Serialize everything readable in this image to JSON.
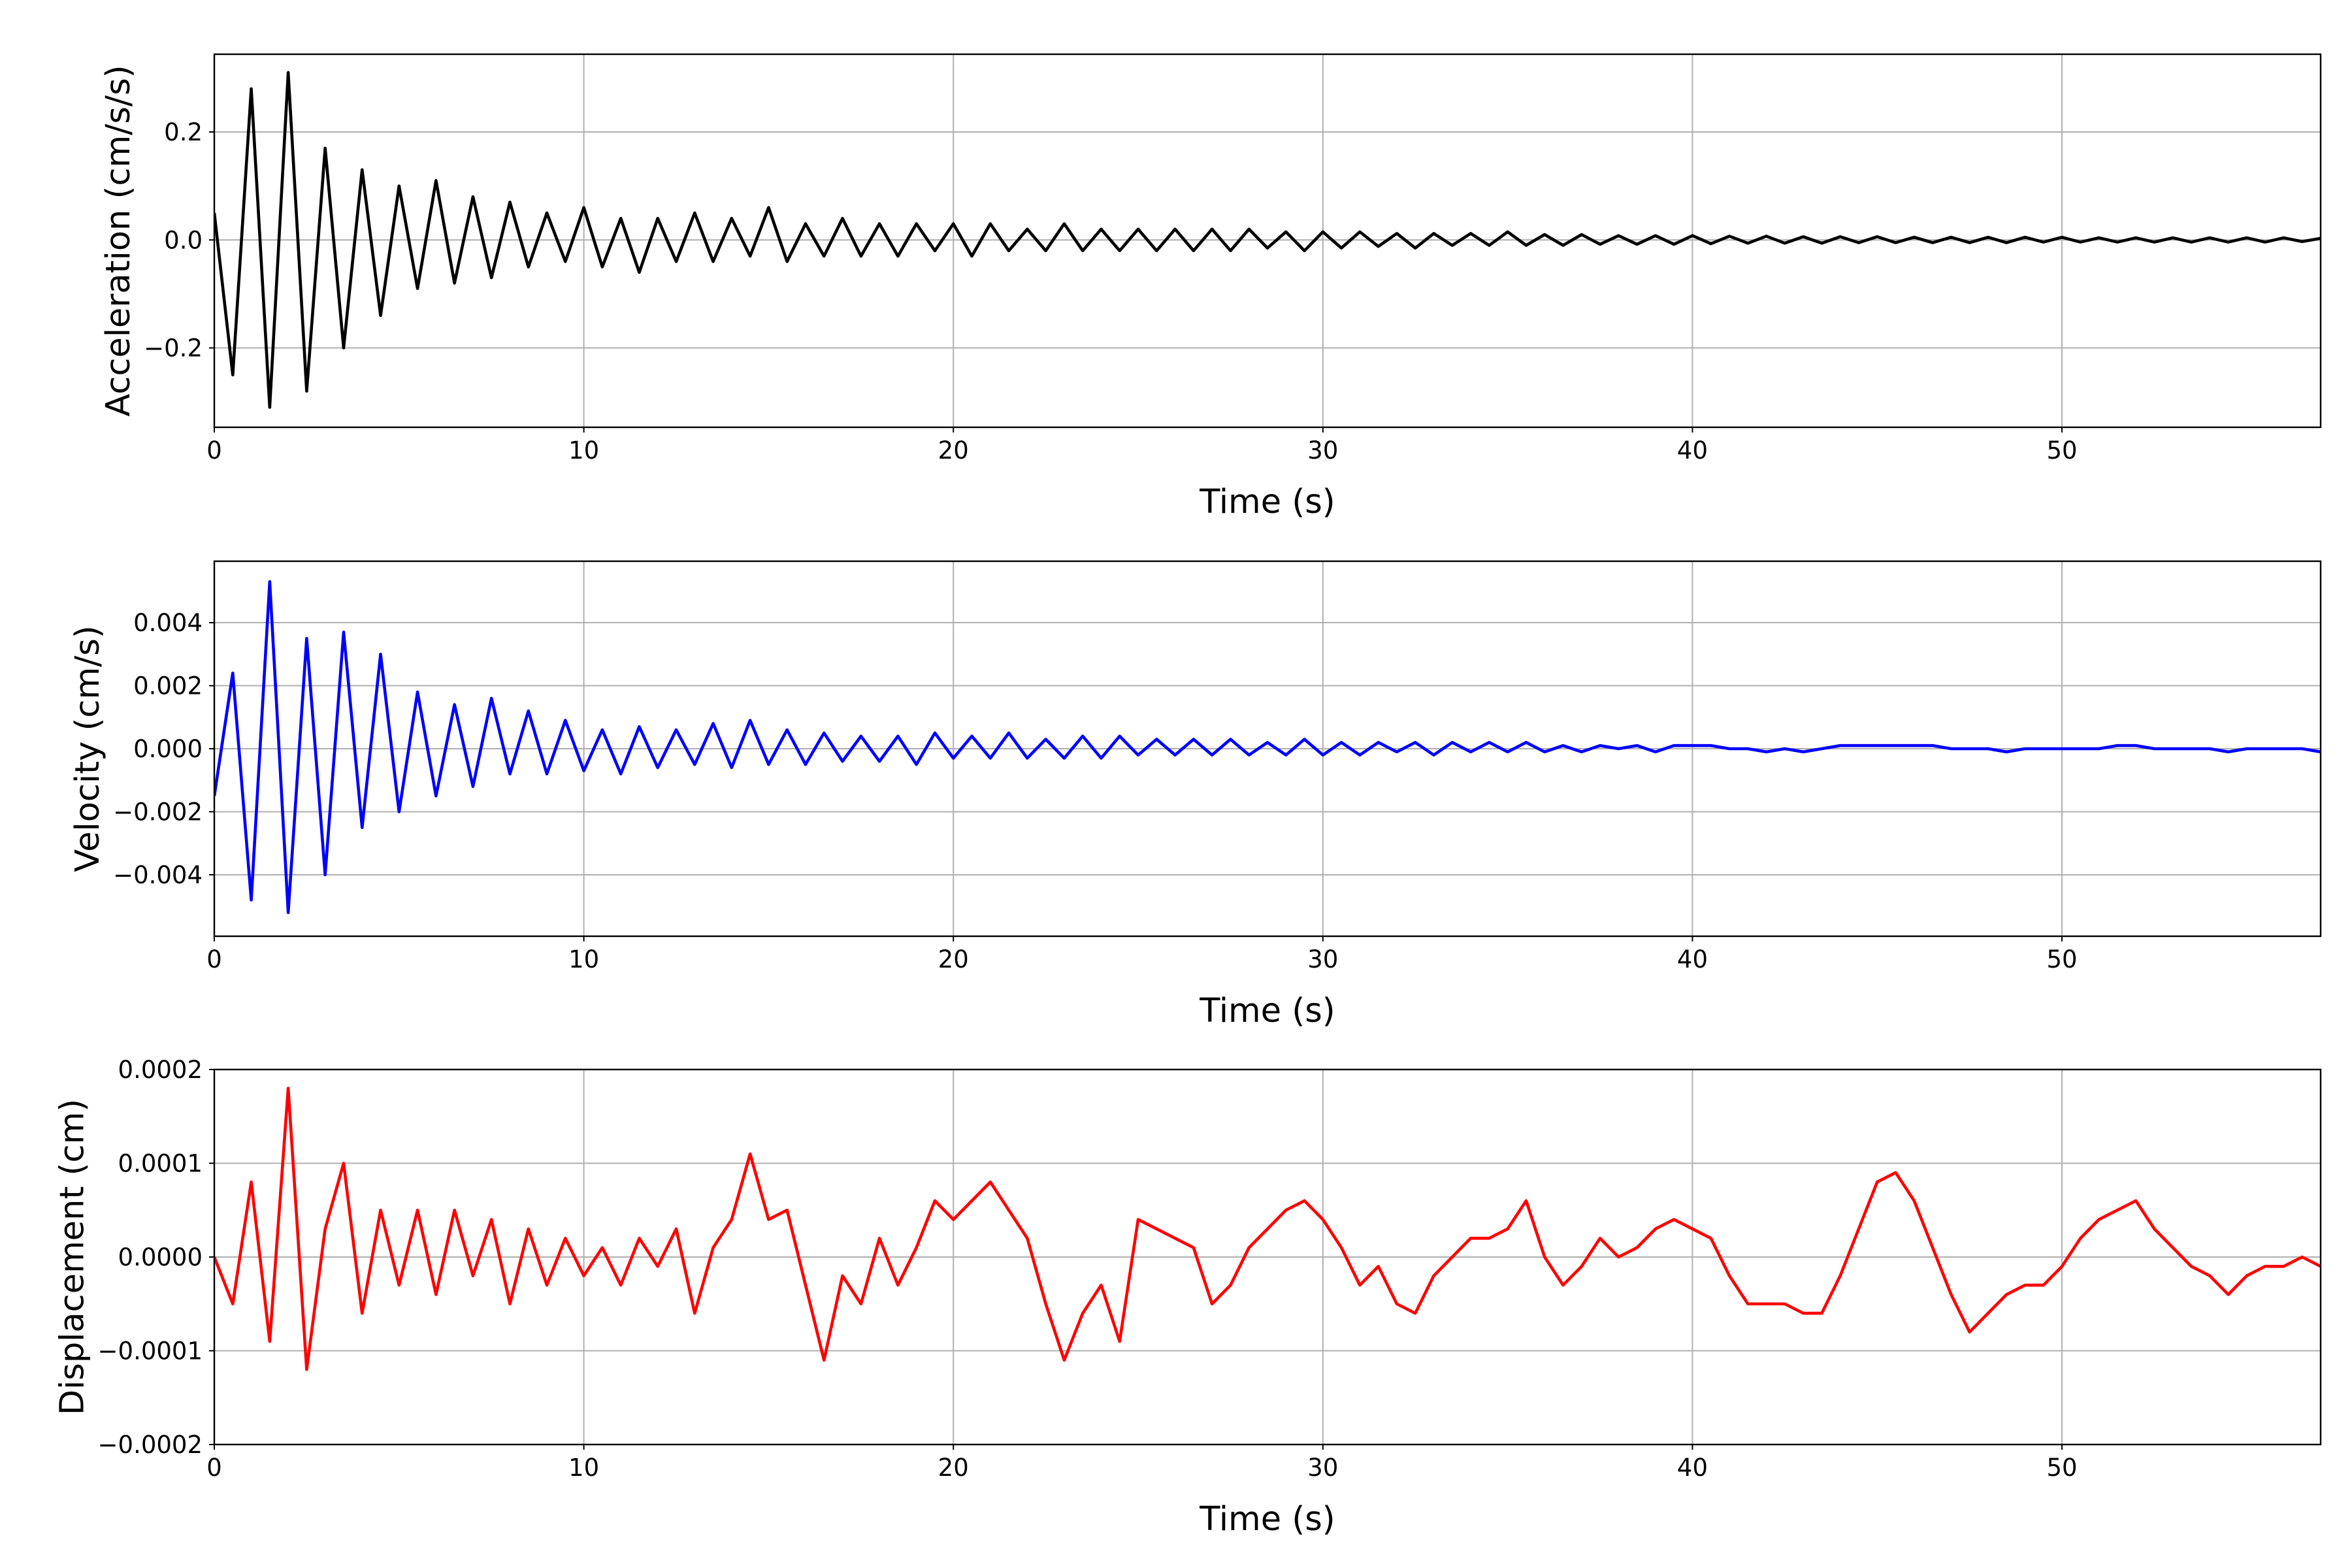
{
  "chart_data": [
    {
      "type": "line",
      "xlabel": "Time (s)",
      "ylabel": "Acceleration (cm/s/s)",
      "color": "#000000",
      "grid": true,
      "xlim": [
        0,
        57
      ],
      "xticks": [
        0,
        10,
        20,
        30,
        40,
        50
      ],
      "ylim": [
        -0.347,
        0.344
      ],
      "yticks": [
        {
          "value": -0.2,
          "label": "−0.2"
        },
        {
          "value": 0,
          "label": "0.0"
        },
        0.2
      ],
      "x": [
        0,
        0.5,
        1,
        1.5,
        2,
        2.5,
        3,
        3.5,
        4,
        4.5,
        5,
        5.5,
        6,
        6.5,
        7,
        7.5,
        8,
        8.5,
        9,
        9.5,
        10,
        10.5,
        11,
        11.5,
        12,
        12.5,
        13,
        13.5,
        14,
        14.5,
        15,
        15.5,
        16,
        16.5,
        17,
        17.5,
        18,
        18.5,
        19,
        19.5,
        20,
        20.5,
        21,
        21.5,
        22,
        22.5,
        23,
        23.5,
        24,
        24.5,
        25,
        25.5,
        26,
        26.5,
        27,
        27.5,
        28,
        28.5,
        29,
        29.5,
        30,
        30.5,
        31,
        31.5,
        32,
        32.5,
        33,
        33.5,
        34,
        34.5,
        35,
        35.5,
        36,
        36.5,
        37,
        37.5,
        38,
        38.5,
        39,
        39.5,
        40,
        40.5,
        41,
        41.5,
        42,
        42.5,
        43,
        43.5,
        44,
        44.5,
        45,
        45.5,
        46,
        46.5,
        47,
        47.5,
        48,
        48.5,
        49,
        49.5,
        50,
        50.5,
        51,
        51.5,
        52,
        52.5,
        53,
        53.5,
        54,
        54.5,
        55,
        55.5,
        56,
        56.5,
        57
      ],
      "values": [
        0.05,
        -0.25,
        0.28,
        -0.31,
        0.31,
        -0.28,
        0.17,
        -0.2,
        0.13,
        -0.14,
        0.1,
        -0.09,
        0.11,
        -0.08,
        0.08,
        -0.07,
        0.07,
        -0.05,
        0.05,
        -0.04,
        0.06,
        -0.05,
        0.04,
        -0.06,
        0.04,
        -0.04,
        0.05,
        -0.04,
        0.04,
        -0.03,
        0.06,
        -0.04,
        0.03,
        -0.03,
        0.04,
        -0.03,
        0.03,
        -0.03,
        0.03,
        -0.02,
        0.03,
        -0.03,
        0.03,
        -0.02,
        0.02,
        -0.02,
        0.03,
        -0.02,
        0.02,
        -0.02,
        0.02,
        -0.02,
        0.02,
        -0.02,
        0.02,
        -0.02,
        0.02,
        -0.015,
        0.015,
        -0.02,
        0.015,
        -0.015,
        0.015,
        -0.012,
        0.012,
        -0.015,
        0.012,
        -0.01,
        0.012,
        -0.01,
        0.015,
        -0.01,
        0.01,
        -0.01,
        0.01,
        -0.008,
        0.008,
        -0.008,
        0.008,
        -0.008,
        0.008,
        -0.007,
        0.007,
        -0.006,
        0.007,
        -0.006,
        0.006,
        -0.006,
        0.006,
        -0.005,
        0.006,
        -0.005,
        0.005,
        -0.005,
        0.005,
        -0.005,
        0.005,
        -0.005,
        0.005,
        -0.004,
        0.005,
        -0.004,
        0.004,
        -0.004,
        0.004,
        -0.004,
        0.004,
        -0.004,
        0.004,
        -0.004,
        0.004,
        -0.004,
        0.004,
        -0.003,
        0.003
      ]
    },
    {
      "type": "line",
      "xlabel": "Time (s)",
      "ylabel": "Velocity (cm/s)",
      "color": "#0000ff",
      "grid": true,
      "xlim": [
        0,
        57
      ],
      "xticks": [
        0,
        10,
        20,
        30,
        40,
        50
      ],
      "ylim": [
        -0.00595,
        0.00595
      ],
      "yticks": [
        {
          "value": -0.004,
          "label": "−0.004"
        },
        {
          "value": -0.002,
          "label": "−0.002"
        },
        {
          "value": 0,
          "label": "0.000"
        },
        0.002,
        0.004
      ],
      "x": [
        0,
        0.5,
        1,
        1.5,
        2,
        2.5,
        3,
        3.5,
        4,
        4.5,
        5,
        5.5,
        6,
        6.5,
        7,
        7.5,
        8,
        8.5,
        9,
        9.5,
        10,
        10.5,
        11,
        11.5,
        12,
        12.5,
        13,
        13.5,
        14,
        14.5,
        15,
        15.5,
        16,
        16.5,
        17,
        17.5,
        18,
        18.5,
        19,
        19.5,
        20,
        20.5,
        21,
        21.5,
        22,
        22.5,
        23,
        23.5,
        24,
        24.5,
        25,
        25.5,
        26,
        26.5,
        27,
        27.5,
        28,
        28.5,
        29,
        29.5,
        30,
        30.5,
        31,
        31.5,
        32,
        32.5,
        33,
        33.5,
        34,
        34.5,
        35,
        35.5,
        36,
        36.5,
        37,
        37.5,
        38,
        38.5,
        39,
        39.5,
        40,
        40.5,
        41,
        41.5,
        42,
        42.5,
        43,
        43.5,
        44,
        44.5,
        45,
        45.5,
        46,
        46.5,
        47,
        47.5,
        48,
        48.5,
        49,
        49.5,
        50,
        50.5,
        51,
        51.5,
        52,
        52.5,
        53,
        53.5,
        54,
        54.5,
        55,
        55.5,
        56,
        56.5,
        57
      ],
      "values": [
        -0.0015,
        0.0024,
        -0.0048,
        0.0053,
        -0.0052,
        0.0035,
        -0.004,
        0.0037,
        -0.0025,
        0.003,
        -0.002,
        0.0018,
        -0.0015,
        0.0014,
        -0.0012,
        0.0016,
        -0.0008,
        0.0012,
        -0.0008,
        0.0009,
        -0.0007,
        0.0006,
        -0.0008,
        0.0007,
        -0.0006,
        0.0006,
        -0.0005,
        0.0008,
        -0.0006,
        0.0009,
        -0.0005,
        0.0006,
        -0.0005,
        0.0005,
        -0.0004,
        0.0004,
        -0.0004,
        0.0004,
        -0.0005,
        0.0005,
        -0.0003,
        0.0004,
        -0.0003,
        0.0005,
        -0.0003,
        0.0003,
        -0.0003,
        0.0004,
        -0.0003,
        0.0004,
        -0.0002,
        0.0003,
        -0.0002,
        0.0003,
        -0.0002,
        0.0003,
        -0.0002,
        0.0002,
        -0.0002,
        0.0003,
        -0.0002,
        0.0002,
        -0.0002,
        0.0002,
        -0.0001,
        0.0002,
        -0.0002,
        0.0002,
        -0.0001,
        0.0002,
        -0.0001,
        0.0002,
        -0.0001,
        0.0001,
        -0.0001,
        0.0001,
        0,
        0.0001,
        -0.0001,
        0.0001,
        0.0001,
        0.0001,
        0,
        0,
        -0.0001,
        0,
        -0.0001,
        0,
        0.0001,
        0.0001,
        0.0001,
        0.0001,
        0.0001,
        0.0001,
        0,
        0,
        0,
        -0.0001,
        0,
        0,
        0,
        0,
        0,
        0.0001,
        0.0001,
        0,
        0,
        0,
        0,
        -0.0001,
        0,
        0,
        0,
        0,
        -0.0001
      ]
    },
    {
      "type": "line",
      "xlabel": "Time (s)",
      "ylabel": "Displacement (cm)",
      "color": "#ff0000",
      "grid": true,
      "xlim": [
        0,
        57
      ],
      "xticks": [
        0,
        10,
        20,
        30,
        40,
        50
      ],
      "ylim": [
        -0.0002,
        0.0002
      ],
      "yticks": [
        {
          "value": -0.0002,
          "label": "−0.0002"
        },
        {
          "value": -0.0001,
          "label": "−0.0001"
        },
        {
          "value": 0,
          "label": "0.0000"
        },
        0.0001,
        0.0002
      ],
      "x": [
        0,
        0.5,
        1,
        1.5,
        2,
        2.5,
        3,
        3.5,
        4,
        4.5,
        5,
        5.5,
        6,
        6.5,
        7,
        7.5,
        8,
        8.5,
        9,
        9.5,
        10,
        10.5,
        11,
        11.5,
        12,
        12.5,
        13,
        13.5,
        14,
        14.5,
        15,
        15.5,
        16,
        16.5,
        17,
        17.5,
        18,
        18.5,
        19,
        19.5,
        20,
        20.5,
        21,
        21.5,
        22,
        22.5,
        23,
        23.5,
        24,
        24.5,
        25,
        25.5,
        26,
        26.5,
        27,
        27.5,
        28,
        28.5,
        29,
        29.5,
        30,
        30.5,
        31,
        31.5,
        32,
        32.5,
        33,
        33.5,
        34,
        34.5,
        35,
        35.5,
        36,
        36.5,
        37,
        37.5,
        38,
        38.5,
        39,
        39.5,
        40,
        40.5,
        41,
        41.5,
        42,
        42.5,
        43,
        43.5,
        44,
        44.5,
        45,
        45.5,
        46,
        46.5,
        47,
        47.5,
        48,
        48.5,
        49,
        49.5,
        50,
        50.5,
        51,
        51.5,
        52,
        52.5,
        53,
        53.5,
        54,
        54.5,
        55,
        55.5,
        56,
        56.5,
        57
      ],
      "values": [
        0,
        -5e-05,
        8e-05,
        -9e-05,
        0.00018,
        -0.00012,
        3e-05,
        0.0001,
        -6e-05,
        5e-05,
        -3e-05,
        5e-05,
        -4e-05,
        5e-05,
        -2e-05,
        4e-05,
        -5e-05,
        3e-05,
        -3e-05,
        2e-05,
        -2e-05,
        1e-05,
        -3e-05,
        2e-05,
        -1e-05,
        3e-05,
        -6e-05,
        1e-05,
        4e-05,
        0.00011,
        4e-05,
        5e-05,
        -3e-05,
        -0.00011,
        -2e-05,
        -5e-05,
        2e-05,
        -3e-05,
        1e-05,
        6e-05,
        4e-05,
        6e-05,
        8e-05,
        5e-05,
        2e-05,
        -5e-05,
        -0.00011,
        -6e-05,
        -3e-05,
        -9e-05,
        4e-05,
        3e-05,
        2e-05,
        1e-05,
        -5e-05,
        -3e-05,
        1e-05,
        3e-05,
        5e-05,
        6e-05,
        4e-05,
        1e-05,
        -3e-05,
        -1e-05,
        -5e-05,
        -6e-05,
        -2e-05,
        0,
        2e-05,
        2e-05,
        3e-05,
        6e-05,
        0,
        -3e-05,
        -1e-05,
        2e-05,
        0,
        1e-05,
        3e-05,
        4e-05,
        3e-05,
        2e-05,
        -2e-05,
        -5e-05,
        -5e-05,
        -5e-05,
        -6e-05,
        -6e-05,
        -2e-05,
        3e-05,
        8e-05,
        9e-05,
        6e-05,
        1e-05,
        -4e-05,
        -8e-05,
        -6e-05,
        -4e-05,
        -3e-05,
        -3e-05,
        -1e-05,
        2e-05,
        4e-05,
        5e-05,
        6e-05,
        3e-05,
        1e-05,
        -1e-05,
        -2e-05,
        -4e-05,
        -2e-05,
        -1e-05,
        -1e-05,
        0,
        -1e-05
      ]
    }
  ]
}
